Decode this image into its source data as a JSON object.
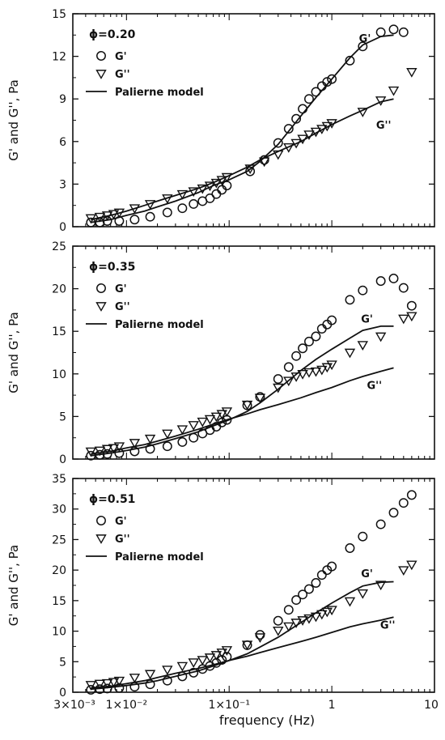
{
  "figure": {
    "xlabel": "frequency (Hz)",
    "x_tick_labels": [
      {
        "value": 0.003,
        "label": "3×10⁻³"
      },
      {
        "value": 0.01,
        "label": "1×10⁻²"
      },
      {
        "value": 0.1,
        "label": "1×10⁻¹"
      },
      {
        "value": 1,
        "label": "1"
      },
      {
        "value": 10,
        "label": "10"
      }
    ]
  },
  "chart_data": [
    {
      "type": "scatter",
      "phi_label": "ϕ=0.20",
      "ylabel": "G' and G'', Pa",
      "xscale": "log",
      "xlim": [
        0.003,
        10
      ],
      "ylim": [
        0,
        15
      ],
      "yticks": [
        0,
        3,
        6,
        9,
        12,
        15
      ],
      "legend": {
        "placement": "top-left",
        "entries": [
          "G'",
          "G''",
          "Palierne model"
        ]
      },
      "annotations": [
        {
          "text": "G'",
          "x": 2.1,
          "y": 13.0
        },
        {
          "text": "G''",
          "x": 3.2,
          "y": 6.9
        }
      ],
      "series": [
        {
          "name": "G'",
          "marker": "circle",
          "x": [
            0.0045,
            0.0055,
            0.0065,
            0.0085,
            0.012,
            0.017,
            0.025,
            0.035,
            0.045,
            0.055,
            0.065,
            0.075,
            0.085,
            0.095,
            0.16,
            0.22,
            0.3,
            0.38,
            0.45,
            0.52,
            0.6,
            0.7,
            0.8,
            0.9,
            1.0,
            1.5,
            2.0,
            3.0,
            4.0,
            5.0
          ],
          "y": [
            0.3,
            0.3,
            0.4,
            0.4,
            0.5,
            0.7,
            1.0,
            1.3,
            1.6,
            1.8,
            2.0,
            2.3,
            2.6,
            2.9,
            3.9,
            4.7,
            5.9,
            6.9,
            7.6,
            8.3,
            9.0,
            9.5,
            9.9,
            10.2,
            10.4,
            11.7,
            12.7,
            13.7,
            13.9,
            13.7
          ]
        },
        {
          "name": "G''",
          "marker": "triangle-down",
          "x": [
            0.0045,
            0.0055,
            0.0065,
            0.0075,
            0.0085,
            0.012,
            0.017,
            0.025,
            0.035,
            0.045,
            0.055,
            0.065,
            0.075,
            0.085,
            0.095,
            0.16,
            0.22,
            0.3,
            0.38,
            0.45,
            0.52,
            0.6,
            0.7,
            0.8,
            0.9,
            1.0,
            2.0,
            3.0,
            4.0,
            6.0
          ],
          "y": [
            0.6,
            0.7,
            0.8,
            0.9,
            1.0,
            1.3,
            1.6,
            2.0,
            2.3,
            2.5,
            2.7,
            2.9,
            3.1,
            3.3,
            3.5,
            4.1,
            4.6,
            5.1,
            5.6,
            5.9,
            6.2,
            6.5,
            6.7,
            6.9,
            7.1,
            7.3,
            8.1,
            8.9,
            9.6,
            10.9
          ]
        },
        {
          "name": "Palierne model G'",
          "style": "line",
          "x": [
            0.0045,
            0.007,
            0.01,
            0.015,
            0.02,
            0.03,
            0.05,
            0.07,
            0.1,
            0.15,
            0.2,
            0.3,
            0.5,
            0.7,
            1.0,
            1.5,
            2.0,
            3.0,
            4.0
          ],
          "y": [
            0.3,
            0.5,
            0.8,
            1.1,
            1.4,
            1.8,
            2.4,
            2.9,
            3.3,
            3.9,
            4.6,
            5.8,
            7.8,
            9.1,
            10.4,
            11.9,
            12.8,
            13.4,
            13.5
          ]
        },
        {
          "name": "Palierne model G''",
          "style": "line",
          "x": [
            0.0045,
            0.007,
            0.01,
            0.015,
            0.02,
            0.03,
            0.05,
            0.07,
            0.1,
            0.15,
            0.2,
            0.3,
            0.5,
            0.7,
            1.0,
            1.5,
            2.0,
            3.0,
            4.0
          ],
          "y": [
            0.5,
            0.8,
            1.1,
            1.5,
            1.8,
            2.2,
            2.7,
            3.1,
            3.6,
            4.2,
            4.7,
            5.3,
            6.0,
            6.6,
            7.2,
            7.8,
            8.2,
            8.8,
            9.0
          ]
        }
      ]
    },
    {
      "type": "scatter",
      "phi_label": "ϕ=0.35",
      "ylabel": "G' and G'', Pa",
      "xscale": "log",
      "xlim": [
        0.003,
        10
      ],
      "ylim": [
        0,
        25
      ],
      "yticks": [
        0,
        5,
        10,
        15,
        20,
        25
      ],
      "legend": {
        "placement": "top-left",
        "entries": [
          "G'",
          "G''",
          "Palierne model"
        ]
      },
      "annotations": [
        {
          "text": "G'",
          "x": 2.2,
          "y": 16.0
        },
        {
          "text": "G''",
          "x": 2.6,
          "y": 8.2
        }
      ],
      "series": [
        {
          "name": "G'",
          "marker": "circle",
          "x": [
            0.0045,
            0.0055,
            0.0065,
            0.0085,
            0.012,
            0.017,
            0.025,
            0.035,
            0.045,
            0.055,
            0.065,
            0.075,
            0.085,
            0.095,
            0.15,
            0.2,
            0.3,
            0.38,
            0.45,
            0.52,
            0.6,
            0.7,
            0.8,
            0.9,
            1.0,
            1.5,
            2.0,
            3.0,
            4.0,
            5.0,
            6.0
          ],
          "y": [
            0.4,
            0.5,
            0.6,
            0.7,
            0.9,
            1.2,
            1.5,
            2.0,
            2.5,
            3.0,
            3.4,
            3.8,
            4.3,
            4.6,
            6.3,
            7.3,
            9.4,
            10.8,
            12.1,
            13.0,
            13.8,
            14.4,
            15.3,
            15.8,
            16.3,
            18.7,
            19.8,
            20.9,
            21.2,
            20.1,
            18.0
          ]
        },
        {
          "name": "G''",
          "marker": "triangle-down",
          "x": [
            0.0045,
            0.0055,
            0.0065,
            0.0075,
            0.0085,
            0.012,
            0.017,
            0.025,
            0.035,
            0.045,
            0.055,
            0.065,
            0.075,
            0.085,
            0.095,
            0.15,
            0.2,
            0.3,
            0.38,
            0.45,
            0.52,
            0.6,
            0.7,
            0.8,
            0.9,
            1.0,
            1.5,
            2.0,
            3.0,
            5.0,
            6.0
          ],
          "y": [
            0.9,
            1.0,
            1.2,
            1.3,
            1.5,
            1.9,
            2.4,
            3.0,
            3.5,
            4.0,
            4.4,
            4.7,
            5.0,
            5.3,
            5.6,
            6.4,
            7.2,
            8.4,
            9.2,
            9.7,
            10.0,
            10.2,
            10.3,
            10.5,
            10.8,
            11.1,
            12.5,
            13.4,
            14.4,
            16.5,
            16.8
          ]
        },
        {
          "name": "Palierne model G'",
          "style": "line",
          "x": [
            0.0045,
            0.007,
            0.01,
            0.015,
            0.02,
            0.03,
            0.05,
            0.07,
            0.1,
            0.15,
            0.2,
            0.3,
            0.5,
            0.7,
            1.0,
            1.5,
            2.0,
            3.0,
            4.0
          ],
          "y": [
            0.4,
            0.7,
            1.0,
            1.4,
            1.8,
            2.4,
            3.2,
            3.9,
            4.6,
            5.6,
            6.6,
            8.2,
            10.4,
            11.7,
            12.9,
            14.2,
            15.1,
            15.6,
            15.6
          ]
        },
        {
          "name": "Palierne model G''",
          "style": "line",
          "x": [
            0.0045,
            0.007,
            0.01,
            0.015,
            0.02,
            0.03,
            0.05,
            0.07,
            0.1,
            0.15,
            0.2,
            0.3,
            0.5,
            0.7,
            1.0,
            1.5,
            2.0,
            3.0,
            4.0
          ],
          "y": [
            0.6,
            0.9,
            1.3,
            1.7,
            2.1,
            2.7,
            3.5,
            4.1,
            4.7,
            5.3,
            5.8,
            6.4,
            7.2,
            7.8,
            8.4,
            9.2,
            9.7,
            10.3,
            10.7
          ]
        }
      ]
    },
    {
      "type": "scatter",
      "phi_label": "ϕ=0.51",
      "ylabel": "G' and G'', Pa",
      "xscale": "log",
      "xlim": [
        0.003,
        10
      ],
      "ylim": [
        0,
        35
      ],
      "yticks": [
        0,
        5,
        10,
        15,
        20,
        25,
        30,
        35
      ],
      "legend": {
        "placement": "top-left",
        "entries": [
          "G'",
          "G''",
          "Palierne model"
        ]
      },
      "annotations": [
        {
          "text": "G'",
          "x": 2.2,
          "y": 18.8
        },
        {
          "text": "G''",
          "x": 3.5,
          "y": 10.4
        }
      ],
      "series": [
        {
          "name": "G'",
          "marker": "circle",
          "x": [
            0.0045,
            0.0055,
            0.0065,
            0.0085,
            0.012,
            0.017,
            0.025,
            0.035,
            0.045,
            0.055,
            0.065,
            0.075,
            0.085,
            0.095,
            0.15,
            0.2,
            0.3,
            0.38,
            0.45,
            0.52,
            0.6,
            0.7,
            0.8,
            0.9,
            1.0,
            1.5,
            2.0,
            3.0,
            4.0,
            5.0,
            6.0
          ],
          "y": [
            0.4,
            0.5,
            0.6,
            0.7,
            0.9,
            1.3,
            1.9,
            2.6,
            3.2,
            3.8,
            4.3,
            4.8,
            5.3,
            5.8,
            7.7,
            9.4,
            11.7,
            13.5,
            15.1,
            16.0,
            16.9,
            17.9,
            19.2,
            20.0,
            20.6,
            23.6,
            25.5,
            27.5,
            29.4,
            31.0,
            32.3
          ]
        },
        {
          "name": "G''",
          "marker": "triangle-down",
          "x": [
            0.0045,
            0.0055,
            0.0065,
            0.0075,
            0.0085,
            0.012,
            0.017,
            0.025,
            0.035,
            0.045,
            0.055,
            0.065,
            0.075,
            0.085,
            0.095,
            0.15,
            0.2,
            0.3,
            0.38,
            0.45,
            0.52,
            0.6,
            0.7,
            0.8,
            0.9,
            1.0,
            1.5,
            2.0,
            3.0,
            5.0,
            6.0
          ],
          "y": [
            1.2,
            1.4,
            1.5,
            1.7,
            1.9,
            2.4,
            3.0,
            3.7,
            4.3,
            4.9,
            5.3,
            5.7,
            6.1,
            6.5,
            6.9,
            7.8,
            9.0,
            10.1,
            10.8,
            11.4,
            11.8,
            12.1,
            12.4,
            12.8,
            13.2,
            13.5,
            14.9,
            16.2,
            17.6,
            20.0,
            20.9
          ]
        },
        {
          "name": "Palierne model G'",
          "style": "line",
          "x": [
            0.0045,
            0.007,
            0.01,
            0.015,
            0.02,
            0.03,
            0.05,
            0.07,
            0.1,
            0.15,
            0.2,
            0.3,
            0.5,
            0.7,
            1.0,
            1.5,
            2.0,
            3.0,
            4.0
          ],
          "y": [
            0.5,
            0.8,
            1.1,
            1.5,
            1.9,
            2.6,
            3.5,
            4.3,
            5.2,
            6.3,
            7.4,
            9.0,
            11.4,
            13.0,
            14.6,
            16.3,
            17.4,
            18.0,
            18.1
          ]
        },
        {
          "name": "Palierne model G''",
          "style": "line",
          "x": [
            0.0045,
            0.007,
            0.01,
            0.015,
            0.02,
            0.03,
            0.05,
            0.07,
            0.1,
            0.15,
            0.2,
            0.3,
            0.5,
            0.7,
            1.0,
            1.5,
            2.0,
            3.0,
            4.0
          ],
          "y": [
            0.7,
            1.0,
            1.4,
            1.9,
            2.4,
            3.1,
            3.9,
            4.5,
            5.2,
            5.9,
            6.5,
            7.3,
            8.3,
            9.0,
            9.8,
            10.7,
            11.2,
            11.8,
            12.3
          ]
        }
      ]
    }
  ]
}
